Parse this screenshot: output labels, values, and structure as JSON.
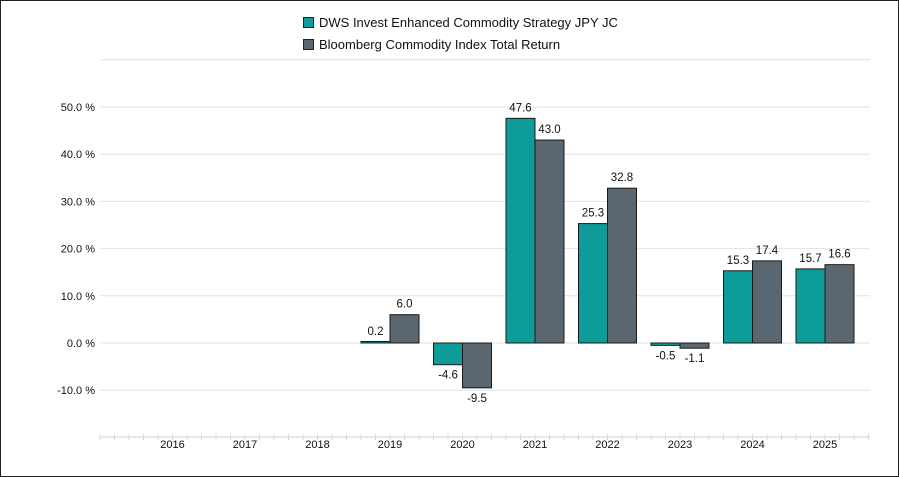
{
  "chart_data": {
    "type": "bar",
    "categories": [
      "2016",
      "2017",
      "2018",
      "2019",
      "2020",
      "2021",
      "2022",
      "2023",
      "2024",
      "2025"
    ],
    "series": [
      {
        "name": "DWS Invest Enhanced Commodity Strategy JPY JC",
        "color": "#0e9c9b",
        "values": [
          null,
          null,
          null,
          0.2,
          -4.6,
          47.6,
          25.3,
          -0.5,
          15.3,
          15.7
        ],
        "labels": [
          "",
          "",
          "",
          "0.2",
          "-4.6",
          "47.6",
          "25.3",
          "-0.5",
          "15.3",
          "15.7"
        ]
      },
      {
        "name": "Bloomberg Commodity Index Total Return",
        "color": "#5a6670",
        "values": [
          null,
          null,
          null,
          6.0,
          -9.5,
          43.0,
          32.8,
          -1.1,
          17.4,
          16.6
        ],
        "labels": [
          "",
          "",
          "",
          "6.0",
          "-9.5",
          "43.0",
          "32.8",
          "-1.1",
          "17.4",
          "16.6"
        ]
      }
    ],
    "y_ticks": [
      50,
      40,
      30,
      20,
      10,
      0,
      -10
    ],
    "y_tick_labels": [
      "50.0 %",
      "40.0 %",
      "30.0 %",
      "20.0 %",
      "10.0 %",
      "0.0 %",
      "-10.0 %"
    ],
    "ylim": [
      -20,
      50
    ],
    "grid": true,
    "legend_position": "top-center",
    "title": "",
    "xlabel": "",
    "ylabel": ""
  }
}
